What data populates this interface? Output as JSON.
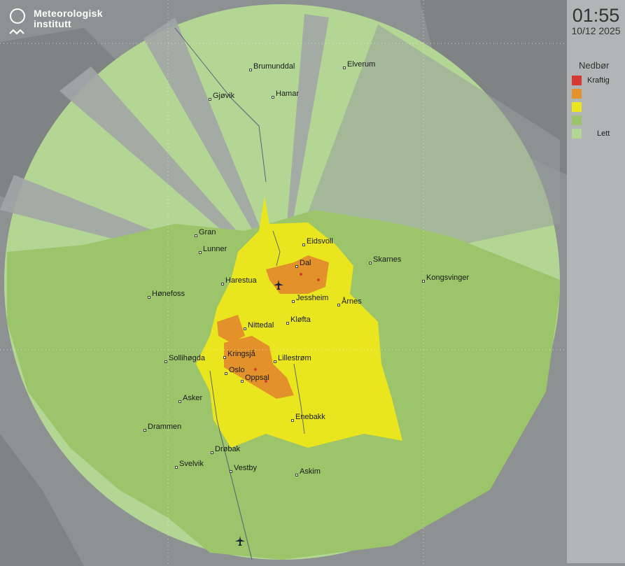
{
  "logo": {
    "line1": "Meteorologisk",
    "line2": "institutt",
    "icon": "met-logo-icon"
  },
  "panel": {
    "time": "01:55",
    "date": "10/12 2025"
  },
  "legend": {
    "title": "Nedbør",
    "items": [
      {
        "color": "#d63a33",
        "label": "Kraftig"
      },
      {
        "color": "#e3912a",
        "label": ""
      },
      {
        "color": "#e9e51f",
        "label": ""
      },
      {
        "color": "#9cc46a",
        "label": ""
      },
      {
        "color": "#b3d694",
        "label": "Lett"
      }
    ]
  },
  "cities": [
    "Brumunddal",
    "Elverum",
    "Gjøvik",
    "Hamar",
    "Gran",
    "Lunner",
    "Eidsvoll",
    "Skarnes",
    "Dal",
    "Harestua",
    "Kongsvinger",
    "Hønefoss",
    "Jessheim",
    "Årnes",
    "Kløfta",
    "Nittedal",
    "Sollihøgda",
    "Kringsjå",
    "Lillestrøm",
    "Oslo",
    "Oppsal",
    "Asker",
    "Enebakk",
    "Drammen",
    "Drøbak",
    "Svelvik",
    "Vestby",
    "Askim"
  ],
  "airports": [
    "airport-icon",
    "airport-icon"
  ]
}
